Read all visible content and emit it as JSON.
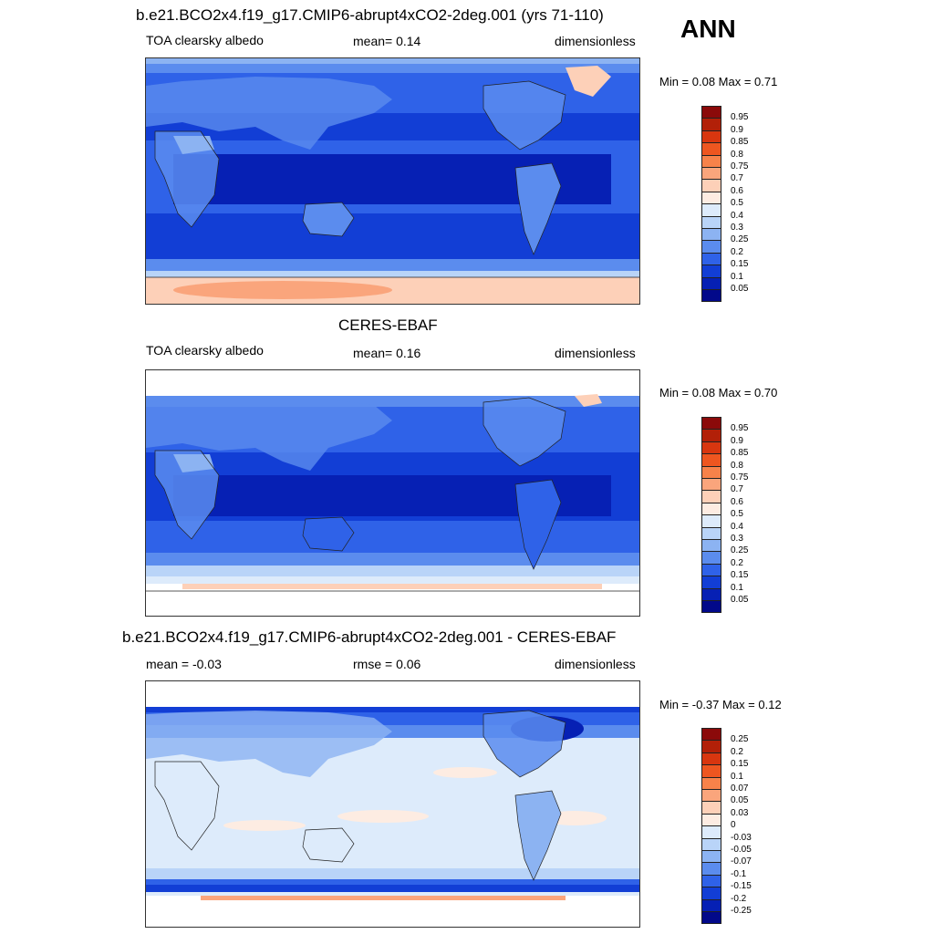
{
  "season": "ANN",
  "panels": [
    {
      "title": "b.e21.BCO2x4.f19_g17.CMIP6-abrupt4xCO2-2deg.001 (yrs 71-110)",
      "left_label": "TOA clearsky albedo",
      "center_label": "mean=   0.14",
      "right_label": "dimensionless",
      "minmax": "Min =   0.08 Max =   0.71"
    },
    {
      "title": "CERES-EBAF",
      "left_label": "TOA clearsky albedo",
      "center_label": "mean=   0.16",
      "right_label": "dimensionless",
      "minmax": "Min =   0.08 Max =   0.70"
    },
    {
      "title": "b.e21.BCO2x4.f19_g17.CMIP6-abrupt4xCO2-2deg.001 - CERES-EBAF",
      "left_label": "mean =  -0.03",
      "center_label": "rmse =   0.06",
      "right_label": "dimensionless",
      "minmax": "Min =  -0.37 Max =   0.12"
    }
  ],
  "colorbar_abs": {
    "levels": [
      "0.95",
      "0.9",
      "0.85",
      "0.8",
      "0.75",
      "0.7",
      "0.6",
      "0.5",
      "0.4",
      "0.3",
      "0.25",
      "0.2",
      "0.15",
      "0.1",
      "0.05"
    ],
    "colors": [
      "#8b0a0a",
      "#b22008",
      "#d8360f",
      "#ee5620",
      "#f7824a",
      "#faa57c",
      "#fdd0b8",
      "#fdece2",
      "#ddebfb",
      "#b9d4f8",
      "#8cb3f2",
      "#5b8cee",
      "#2f62e8",
      "#123ed5",
      "#0620b4",
      "#02098a"
    ]
  },
  "colorbar_diff": {
    "levels": [
      "0.25",
      "0.2",
      "0.15",
      "0.1",
      "0.07",
      "0.05",
      "0.03",
      "0",
      "-0.03",
      "-0.05",
      "-0.07",
      "-0.1",
      "-0.15",
      "-0.2",
      "-0.25"
    ],
    "colors": [
      "#8b0a0a",
      "#b22008",
      "#d8360f",
      "#ee5620",
      "#f7824a",
      "#faa57c",
      "#fdd0b8",
      "#fdece2",
      "#ddebfb",
      "#b9d4f8",
      "#8cb3f2",
      "#5b8cee",
      "#2f62e8",
      "#123ed5",
      "#0620b4",
      "#02098a"
    ]
  }
}
